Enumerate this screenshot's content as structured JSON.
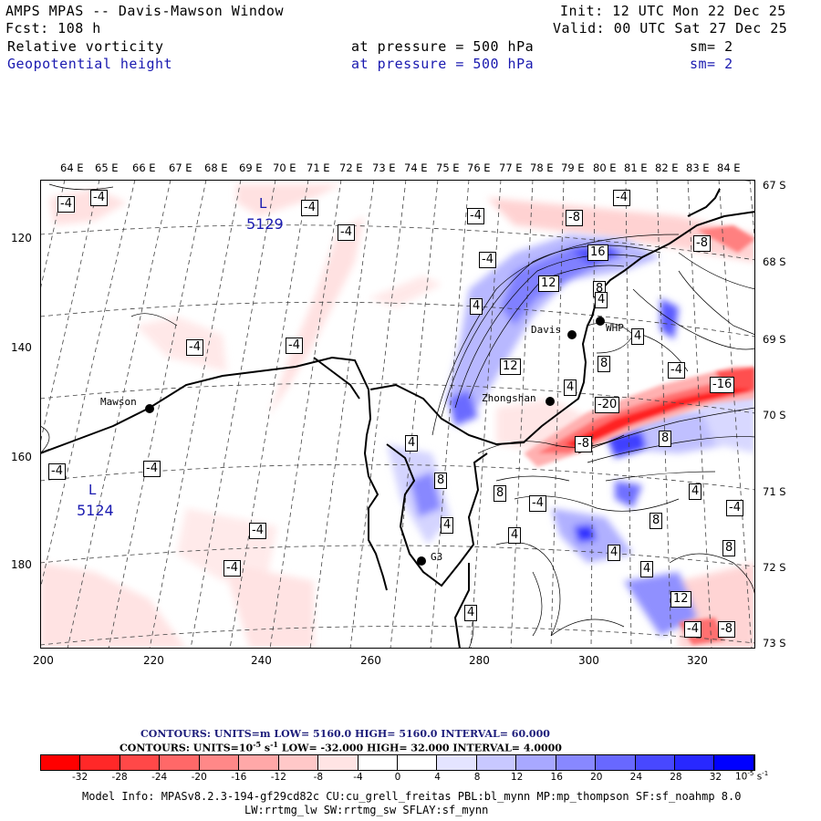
{
  "header": {
    "title": "AMPS MPAS -- Davis-Mawson Window",
    "init": "Init: 12 UTC Mon 22 Dec 25",
    "fcst": "Fcst:  108 h",
    "valid": "Valid: 00 UTC Sat 27 Dec 25",
    "field1": "Relative vorticity",
    "field1_level": "at pressure =  500 hPa",
    "field1_sm": "sm= 2",
    "field2": "Geopotential height",
    "field2_level": "at pressure =  500 hPa",
    "field2_sm": "sm= 2"
  },
  "longitude_labels": [
    "64 E",
    "65 E",
    "66 E",
    "67 E",
    "68 E",
    "69 E",
    "70 E",
    "71 E",
    "72 E",
    "73 E",
    "74 E",
    "75 E",
    "76 E",
    "77 E",
    "78 E",
    "79 E",
    "80 E",
    "81 E",
    "82 E",
    "83 E",
    "84 E"
  ],
  "latitude_labels": [
    "67 S",
    "68 S",
    "69 S",
    "70 S",
    "71 S",
    "72 S",
    "73 S"
  ],
  "y_axis_labels": [
    "120",
    "140",
    "160",
    "180"
  ],
  "x_axis_labels": [
    "200",
    "220",
    "240",
    "260",
    "280",
    "300",
    "320"
  ],
  "stations": [
    {
      "name": "Mawson"
    },
    {
      "name": "Davis"
    },
    {
      "name": "WHP"
    },
    {
      "name": "Zhongshan"
    },
    {
      "name": "G3"
    }
  ],
  "height_lows": [
    {
      "symbol": "L",
      "value": "5129"
    },
    {
      "symbol": "L",
      "value": "5124"
    }
  ],
  "contour_labels": [
    "-4",
    "-4",
    "-4",
    "-4",
    "-4",
    "-4",
    "-4",
    "-4",
    "-8",
    "-8",
    "16",
    "12",
    "8",
    "4",
    "4",
    "8",
    "12",
    "4",
    "-4",
    "-4",
    "-16",
    "-20",
    "-8",
    "8",
    "4",
    "-4",
    "-4",
    "-4",
    "-4",
    "4",
    "8",
    "4",
    "8",
    "-4",
    "4",
    "4",
    "4",
    "8",
    "4",
    "-4",
    "8",
    "4",
    "12",
    "-4",
    "-8",
    "4"
  ],
  "contours_info": {
    "line1_label": "CONTOURS:  UNITS=m  LOW=  5160.0      HIGH=  5160.0      INTERVAL=   60.000",
    "line2_label": "CONTOURS:  UNITS=10",
    "line2_sup": "-5",
    "line2_rest": " s",
    "line2_sup2": "-1",
    "line2_tail": "  LOW=  -32.000      HIGH=  32.000      INTERVAL=    4.0000"
  },
  "colorbar": {
    "colors": [
      "#ff0000",
      "#ff2828",
      "#ff4848",
      "#ff6868",
      "#ff8888",
      "#ffa8a8",
      "#ffc8c8",
      "#ffe4e4",
      "#ffffff",
      "#ffffff",
      "#e4e4ff",
      "#c8c8ff",
      "#a8a8ff",
      "#8888ff",
      "#6868ff",
      "#4848ff",
      "#2828ff",
      "#0000ff"
    ],
    "ticks": [
      "-32",
      "-28",
      "-24",
      "-20",
      "-16",
      "-12",
      "-8",
      "-4",
      "0",
      "4",
      "8",
      "12",
      "16",
      "20",
      "24",
      "28",
      "32"
    ],
    "unit": "10",
    "unit_sup": "-5",
    "unit_tail": " s",
    "unit_sup2": "-1"
  },
  "model_info": {
    "line1": "Model Info: MPASv8.2.3-194-gf29cd82c CU:cu_grell_freitas PBL:bl_mynn MP:mp_thompson SF:sf_noahmp 8.0",
    "line2": "LW:rrtmg_lw SW:rrtmg_sw SFLAY:sf_mynn"
  }
}
